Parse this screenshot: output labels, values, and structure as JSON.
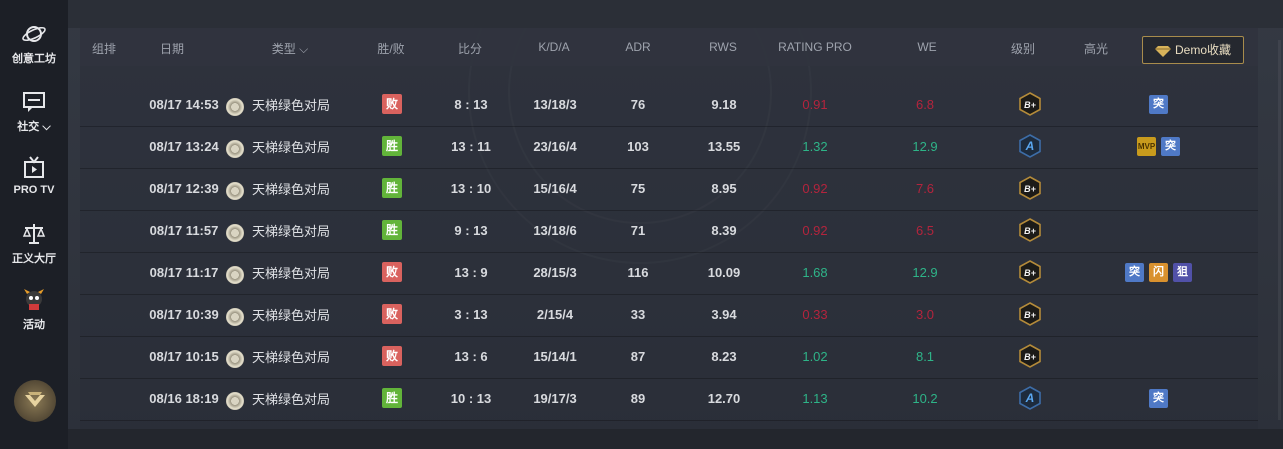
{
  "sidebar": {
    "items": [
      {
        "label": "创意工坊",
        "icon": "planet-icon"
      },
      {
        "label": "社交 ⌵",
        "icon": "chat-icon"
      },
      {
        "label": "PRO TV",
        "icon": "tv-icon"
      },
      {
        "label": "正义大厅",
        "icon": "scales-icon"
      },
      {
        "label": "活动",
        "icon": "mascot-icon"
      }
    ],
    "logo_icon": "profile-badge-icon"
  },
  "table": {
    "headers": {
      "group": "组排",
      "date": "日期",
      "type": "类型 ⌵",
      "result": "胜/败",
      "score": "比分",
      "kda": "K/D/A",
      "adr": "ADR",
      "rws": "RWS",
      "rating": "RATING PRO",
      "we": "WE",
      "rank": "级别",
      "highlight": "高光"
    },
    "demo_button": "Demo收藏",
    "rows": [
      {
        "date": "08/17 14:53",
        "type": "天梯绿色对局",
        "result": "败",
        "win": false,
        "score": "8 : 13",
        "kda": "13/18/3",
        "adr": "76",
        "rws": "9.18",
        "rating": "0.91",
        "rating_good": false,
        "we": "6.8",
        "we_good": false,
        "rank": "B+",
        "tags": [
          "突"
        ]
      },
      {
        "date": "08/17 13:24",
        "type": "天梯绿色对局",
        "result": "胜",
        "win": true,
        "score": "13 : 11",
        "kda": "23/16/4",
        "adr": "103",
        "rws": "13.55",
        "rating": "1.32",
        "rating_good": true,
        "we": "12.9",
        "we_good": true,
        "rank": "A",
        "tags": [
          "MVP",
          "突"
        ]
      },
      {
        "date": "08/17 12:39",
        "type": "天梯绿色对局",
        "result": "胜",
        "win": true,
        "score": "13 : 10",
        "kda": "15/16/4",
        "adr": "75",
        "rws": "8.95",
        "rating": "0.92",
        "rating_good": false,
        "we": "7.6",
        "we_good": false,
        "rank": "B+",
        "tags": []
      },
      {
        "date": "08/17 11:57",
        "type": "天梯绿色对局",
        "result": "胜",
        "win": true,
        "score": "9 : 13",
        "kda": "13/18/6",
        "adr": "71",
        "rws": "8.39",
        "rating": "0.92",
        "rating_good": false,
        "we": "6.5",
        "we_good": false,
        "rank": "B+",
        "tags": []
      },
      {
        "date": "08/17 11:17",
        "type": "天梯绿色对局",
        "result": "败",
        "win": false,
        "score": "13 : 9",
        "kda": "28/15/3",
        "adr": "116",
        "rws": "10.09",
        "rating": "1.68",
        "rating_good": true,
        "we": "12.9",
        "we_good": true,
        "rank": "B+",
        "tags": [
          "突",
          "闪",
          "狙"
        ]
      },
      {
        "date": "08/17 10:39",
        "type": "天梯绿色对局",
        "result": "败",
        "win": false,
        "score": "3 : 13",
        "kda": "2/15/4",
        "adr": "33",
        "rws": "3.94",
        "rating": "0.33",
        "rating_good": false,
        "we": "3.0",
        "we_good": false,
        "rank": "B+",
        "tags": []
      },
      {
        "date": "08/17 10:15",
        "type": "天梯绿色对局",
        "result": "败",
        "win": false,
        "score": "13 : 6",
        "kda": "15/14/1",
        "adr": "87",
        "rws": "8.23",
        "rating": "1.02",
        "rating_good": true,
        "we": "8.1",
        "we_good": true,
        "rank": "B+",
        "tags": []
      },
      {
        "date": "08/16 18:19",
        "type": "天梯绿色对局",
        "result": "胜",
        "win": true,
        "score": "10 : 13",
        "kda": "19/17/3",
        "adr": "89",
        "rws": "12.70",
        "rating": "1.13",
        "rating_good": true,
        "we": "10.2",
        "we_good": true,
        "rank": "A",
        "tags": [
          "突"
        ]
      }
    ]
  },
  "colors": {
    "win": "#62b43a",
    "loss": "#d9625e",
    "good": "#2eb488",
    "bad": "#b3243d",
    "accent_gold": "#a88c4c"
  }
}
